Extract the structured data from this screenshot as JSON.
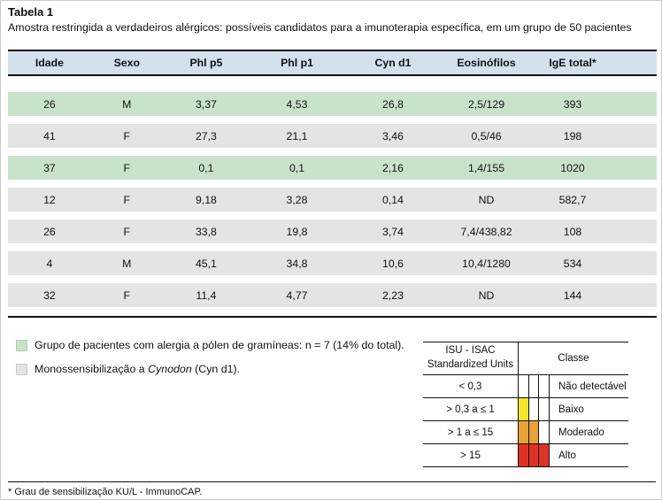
{
  "page": {
    "title": "Tabela 1",
    "subtitle": "Amostra restringida a verdadeiros alérgicos: possíveis candidatos para a imunoterapia específica, em um grupo de 50 pacientes",
    "footnote": "* Grau de sensibilização KU/L - ImmunoCAP."
  },
  "table": {
    "headers": [
      "Idade",
      "Sexo",
      "Phl p5",
      "Phl p1",
      "Cyn d1",
      "Eosinófilos",
      "IgE total*"
    ],
    "rows": [
      {
        "highlight": "green",
        "cells": [
          "26",
          "M",
          "3,37",
          "4,53",
          "26,8",
          "2,5/129",
          "393"
        ]
      },
      {
        "highlight": "gray",
        "cells": [
          "41",
          "F",
          "27,3",
          "21,1",
          "3,46",
          "0,5/46",
          "198"
        ]
      },
      {
        "highlight": "green",
        "cells": [
          "37",
          "F",
          "0,1",
          "0,1",
          "2,16",
          "1,4/155",
          "1020"
        ]
      },
      {
        "highlight": "gray",
        "cells": [
          "12",
          "F",
          "9,18",
          "3,28",
          "0,14",
          "ND",
          "582,7"
        ]
      },
      {
        "highlight": "gray",
        "cells": [
          "26",
          "F",
          "33,8",
          "19,8",
          "3,74",
          "7,4/438,82",
          "108"
        ]
      },
      {
        "highlight": "gray",
        "cells": [
          "4",
          "M",
          "45,1",
          "34,8",
          "10,6",
          "10,4/1280",
          "534"
        ]
      },
      {
        "highlight": "gray",
        "cells": [
          "32",
          "F",
          "11,4",
          "4,77",
          "2,23",
          "ND",
          "144"
        ]
      }
    ]
  },
  "legend": {
    "green_item": "Grupo de pacientes com alergia a pólen de gramíneas: n = 7 (14% do total).",
    "gray_item_prefix": "Monossensibilização a ",
    "gray_item_italic": "Cynodon",
    "gray_item_suffix": " (Cyn d1)."
  },
  "isu_table": {
    "header_left_line1": "ISU - ISAC",
    "header_left_line2": "Standardized Units",
    "header_right": "Classe",
    "rows": [
      {
        "range": "< 0,3",
        "label": "Não detectável",
        "swatches": [
          "none",
          "none",
          "none"
        ]
      },
      {
        "range": "> 0,3 a ≤ 1",
        "label": "Baixo",
        "swatches": [
          "yellow",
          "none",
          "none"
        ]
      },
      {
        "range": "> 1 a ≤ 15",
        "label": "Moderado",
        "swatches": [
          "orange",
          "orange",
          "none"
        ]
      },
      {
        "range": "> 15",
        "label": "Alto",
        "swatches": [
          "red",
          "red",
          "red"
        ]
      }
    ]
  },
  "colors": {
    "header_blue": "#d3e1ed",
    "row_green": "#c9e3cb",
    "row_gray": "#e4e4e4",
    "low_yellow": "#f5e62c",
    "moderate_orange": "#e9a23a",
    "high_red": "#df3226",
    "line_black": "#111111"
  }
}
